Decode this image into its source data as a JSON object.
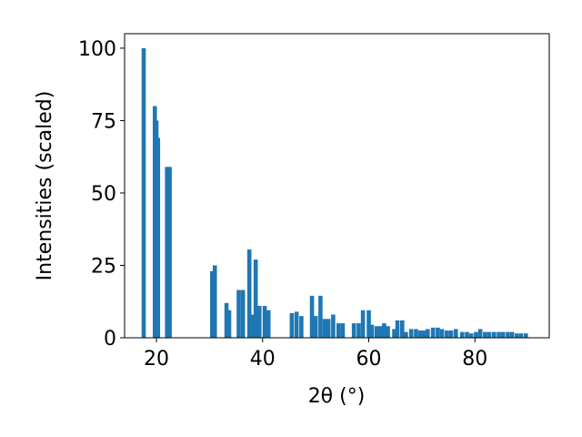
{
  "chart_data": {
    "type": "bar",
    "x_label": "2θ (°)",
    "y_label": "Intensities (scaled)",
    "x": [
      17.6,
      19.7,
      20.0,
      20.3,
      22.0,
      22.5,
      30.5,
      31.0,
      33.2,
      33.7,
      35.5,
      36.3,
      37.5,
      38.0,
      38.7,
      39.4,
      40.4,
      41.1,
      45.5,
      46.4,
      47.3,
      49.3,
      50.0,
      50.9,
      51.7,
      52.4,
      53.3,
      54.3,
      55.1,
      57.2,
      58.1,
      58.9,
      60.0,
      60.6,
      61.5,
      62.2,
      62.9,
      63.6,
      64.8,
      65.4,
      66.3,
      67.0,
      68.0,
      68.9,
      69.7,
      70.4,
      71.1,
      72.1,
      73.0,
      73.8,
      74.7,
      75.5,
      76.4,
      77.6,
      78.5,
      79.3,
      80.2,
      81.0,
      81.9,
      82.7,
      83.6,
      84.5,
      85.3,
      86.2,
      87.0,
      87.9,
      88.7,
      89.6
    ],
    "values": [
      100,
      80,
      75,
      69,
      59,
      59,
      23,
      25,
      12,
      9.5,
      16.5,
      16.5,
      30.5,
      8,
      27,
      11,
      11,
      9.5,
      8.5,
      9,
      7.5,
      14.5,
      7.5,
      14.5,
      6.5,
      6.5,
      8,
      5,
      5,
      5,
      5,
      9.5,
      9.5,
      4.5,
      4,
      4,
      5,
      4,
      3,
      6,
      6,
      2,
      3,
      3,
      2.5,
      2.5,
      3,
      3.5,
      3.5,
      3,
      2.5,
      2.5,
      3,
      2,
      2,
      1.5,
      2,
      3,
      2,
      2,
      2,
      2,
      2,
      2,
      2,
      1.5,
      1.5,
      1.5
    ],
    "color": "#1f77b4",
    "xlim": [
      14,
      94
    ],
    "ylim": [
      0,
      105
    ],
    "xticks": [
      20,
      40,
      60,
      80
    ],
    "yticks": [
      0,
      25,
      50,
      75,
      100
    ]
  }
}
